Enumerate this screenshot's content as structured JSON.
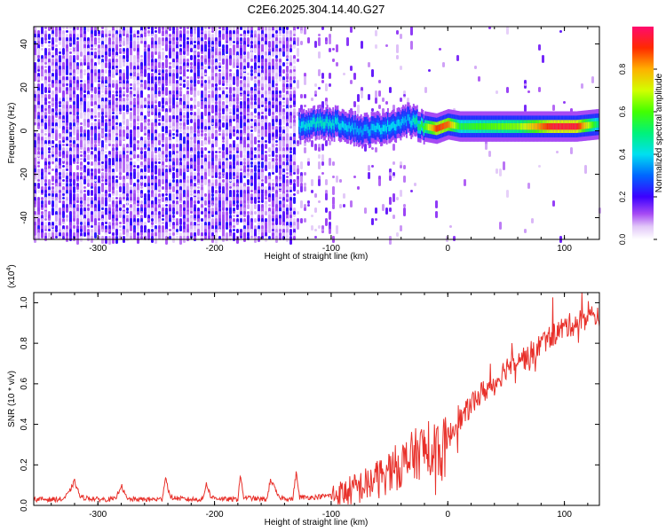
{
  "title": "C2E6.2025.304.14.40.G27",
  "chart_data": [
    {
      "type": "heatmap",
      "xlabel": "Height of straight line (km)",
      "ylabel": "Frequency (Hz)",
      "xlim": [
        -355,
        130
      ],
      "ylim": [
        -50,
        48
      ],
      "xticks": [
        -300,
        -200,
        -100,
        0,
        100
      ],
      "yticks": [
        -40,
        -20,
        0,
        20,
        40
      ],
      "colorbar": {
        "label": "Normalized spectral amplitude",
        "range": [
          0.0,
          1.0
        ],
        "ticks": [
          0.0,
          0.2,
          0.4,
          0.6,
          0.8
        ]
      },
      "colorbar_tick_labels": [
        "0.0",
        "0.2",
        "0.4",
        "0.6",
        "0.8"
      ],
      "ridge": {
        "description_points_x": [
          -128,
          -110,
          -90,
          -75,
          -60,
          -45,
          -35,
          -20,
          -10,
          0,
          10,
          30,
          60,
          90,
          110,
          128
        ],
        "frequency_hz": [
          2,
          4,
          3,
          0,
          1,
          3,
          5,
          2,
          1,
          3,
          2,
          2,
          2,
          2,
          2,
          3
        ],
        "amplitude": [
          0.4,
          0.45,
          0.4,
          0.35,
          0.4,
          0.4,
          0.35,
          0.6,
          0.9,
          0.85,
          0.55,
          0.6,
          0.65,
          0.95,
          0.95,
          0.5
        ]
      }
    },
    {
      "type": "line",
      "xlabel": "Height of straight line (km)",
      "ylabel": "SNR (10 * v/v)",
      "yscale_label": "(x10",
      "yscale_exp": "4",
      "yscale_close": ")",
      "xlim": [
        -355,
        130
      ],
      "ylim": [
        0,
        1.05
      ],
      "xticks": [
        -300,
        -200,
        -100,
        0,
        100
      ],
      "yticks": [
        0.0,
        0.2,
        0.4,
        0.6,
        0.8,
        1.0
      ],
      "ytick_labels": [
        "0.0",
        "0.2",
        "0.4",
        "0.6",
        "0.8",
        "1.0"
      ],
      "color": "#e8302a",
      "series": [
        {
          "name": "SNR",
          "x": [
            -355,
            -340,
            -330,
            -325,
            -320,
            -315,
            -300,
            -285,
            -280,
            -275,
            -260,
            -245,
            -242,
            -238,
            -225,
            -210,
            -207,
            -203,
            -190,
            -180,
            -178,
            -175,
            -160,
            -155,
            -152,
            -145,
            -133,
            -130,
            -127,
            -115,
            -100,
            -90,
            -80,
            -70,
            -60,
            -50,
            -40,
            -30,
            -20,
            -15,
            -10,
            -5,
            0,
            5,
            10,
            15,
            20,
            30,
            40,
            50,
            60,
            70,
            80,
            90,
            100,
            110,
            120,
            130
          ],
          "y": [
            0.03,
            0.03,
            0.03,
            0.06,
            0.12,
            0.04,
            0.03,
            0.03,
            0.1,
            0.03,
            0.03,
            0.03,
            0.14,
            0.04,
            0.03,
            0.03,
            0.11,
            0.04,
            0.03,
            0.03,
            0.15,
            0.04,
            0.03,
            0.03,
            0.13,
            0.04,
            0.03,
            0.16,
            0.04,
            0.04,
            0.05,
            0.06,
            0.08,
            0.1,
            0.13,
            0.17,
            0.2,
            0.24,
            0.28,
            0.22,
            0.3,
            0.25,
            0.33,
            0.38,
            0.42,
            0.45,
            0.5,
            0.56,
            0.6,
            0.68,
            0.74,
            0.72,
            0.8,
            0.84,
            0.88,
            0.9,
            0.93,
            0.94
          ]
        }
      ]
    }
  ]
}
